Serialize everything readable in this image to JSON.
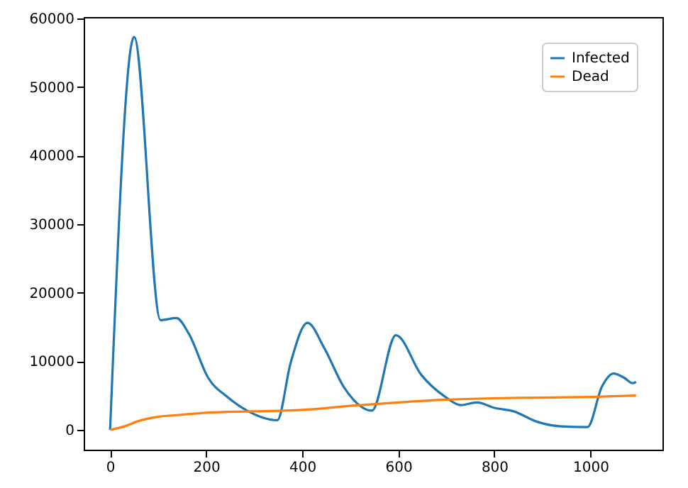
{
  "chart_data": {
    "type": "line",
    "xlim": [
      -55,
      1150
    ],
    "xticks": [
      0,
      200,
      400,
      600,
      800,
      1000
    ],
    "ylim": [
      -2900,
      60200
    ],
    "yticks": [
      0,
      10000,
      20000,
      30000,
      40000,
      50000,
      60000
    ],
    "grid": false,
    "legend": "top right",
    "line_style": "solid",
    "marker": "none",
    "series": [
      {
        "name": "Infected",
        "color": "#1f77b4",
        "x": [
          0,
          50,
          105,
          138,
          164,
          204,
          244,
          285,
          348,
          376,
          411,
          446,
          487,
          545,
          595,
          648,
          698,
          730,
          764,
          800,
          840,
          888,
          939,
          994,
          1024,
          1048,
          1070,
          1088,
          1095
        ],
        "values": [
          0,
          57300,
          16000,
          16300,
          14000,
          7600,
          4800,
          2800,
          1400,
          9800,
          15600,
          11900,
          6200,
          2800,
          13800,
          8000,
          4800,
          3600,
          4000,
          3200,
          2700,
          1200,
          500,
          400,
          6300,
          8200,
          7600,
          6800,
          7000
        ]
      },
      {
        "name": "Dead",
        "color": "#ff7f0e",
        "x": [
          0,
          30,
          60,
          100,
          150,
          200,
          300,
          400,
          500,
          600,
          700,
          800,
          900,
          1000,
          1095
        ],
        "values": [
          0,
          500,
          1300,
          1900,
          2200,
          2500,
          2700,
          2900,
          3500,
          4000,
          4400,
          4600,
          4700,
          4800,
          5000
        ]
      }
    ]
  }
}
